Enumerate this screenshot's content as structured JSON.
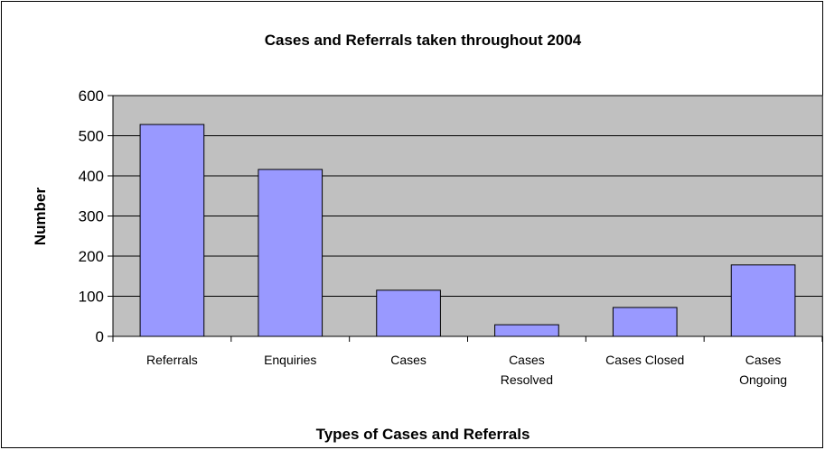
{
  "chart_data": {
    "type": "bar",
    "title": "Cases and Referrals taken throughout 2004",
    "x_label": "Types of Cases and Referrals",
    "y_label": "Number",
    "categories": [
      "Referrals",
      "Enquiries",
      "Cases",
      "Cases Resolved",
      "Cases Closed",
      "Cases Ongoing"
    ],
    "values": [
      528,
      416,
      115,
      29,
      72,
      178
    ],
    "color": "#9999ff",
    "plot_background": "#c0c0c0",
    "ylim": [
      0,
      600
    ],
    "yticks": [
      0,
      100,
      200,
      300,
      400,
      500,
      600
    ],
    "grid": true
  }
}
